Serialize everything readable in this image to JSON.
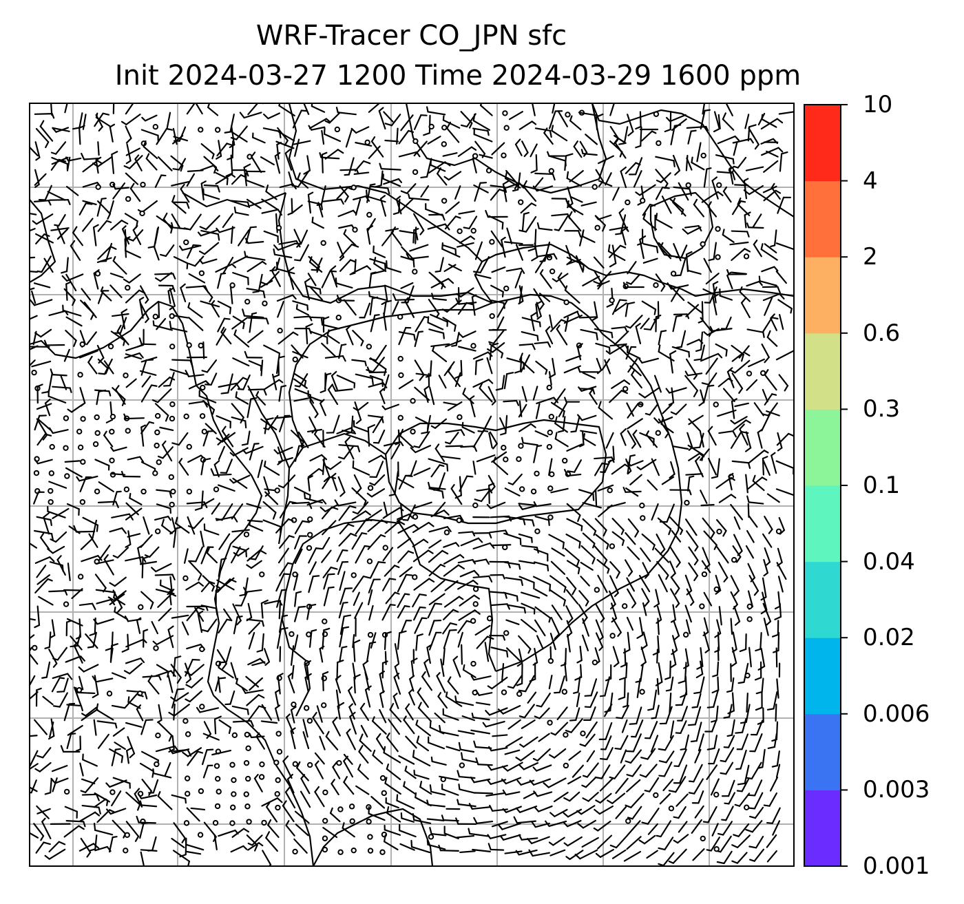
{
  "title": {
    "line1": "WRF-Tracer CO_JPN sfc",
    "line2": "Init 2024-03-27 1200 Time 2024-03-29 1600 ppm"
  },
  "colorbar": {
    "levels": [
      "0.001",
      "0.003",
      "0.006",
      "0.02",
      "0.04",
      "0.1",
      "0.3",
      "0.6",
      "2",
      "4",
      "10"
    ],
    "colors": [
      "#6a2cff",
      "#3b74f2",
      "#00b4ec",
      "#2fd9d2",
      "#5ef5bf",
      "#8cf59a",
      "#d2e087",
      "#fdb061",
      "#ff703b",
      "#ff2a1a"
    ]
  },
  "map": {
    "background": "#ffffff",
    "gridline_color": "#b0b0b0",
    "coastline_color": "#000000",
    "wind_barb_color": "#000000",
    "gridlines": true
  }
}
